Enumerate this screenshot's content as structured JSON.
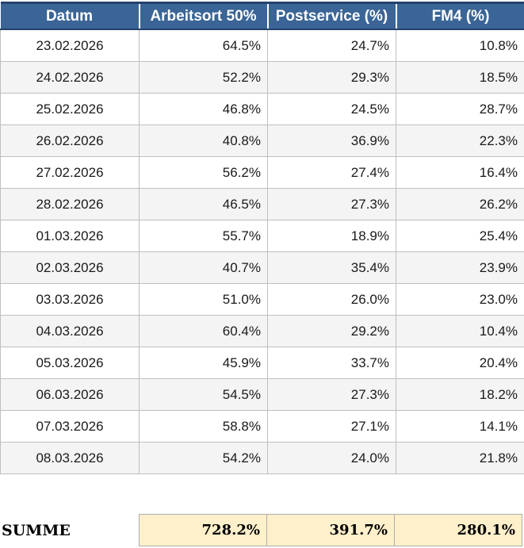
{
  "colors": {
    "header_bg": "#3A6596",
    "header_border": "#24426C",
    "row_alt": "#F4F4F4",
    "grid": "#BFBFBF",
    "summary_bg": "#FEF0CB",
    "summary_border": "#ADADAD"
  },
  "chart_data": {
    "type": "table",
    "title": "",
    "columns": [
      "Datum",
      "Arbeitsort 50%",
      "Postservice (%)",
      "FM4 (%)"
    ],
    "rows": [
      {
        "date": "23.02.2026",
        "arbeitsort": "64.5%",
        "postservice": "24.7%",
        "fm4": "10.8%"
      },
      {
        "date": "24.02.2026",
        "arbeitsort": "52.2%",
        "postservice": "29.3%",
        "fm4": "18.5%"
      },
      {
        "date": "25.02.2026",
        "arbeitsort": "46.8%",
        "postservice": "24.5%",
        "fm4": "28.7%"
      },
      {
        "date": "26.02.2026",
        "arbeitsort": "40.8%",
        "postservice": "36.9%",
        "fm4": "22.3%"
      },
      {
        "date": "27.02.2026",
        "arbeitsort": "56.2%",
        "postservice": "27.4%",
        "fm4": "16.4%"
      },
      {
        "date": "28.02.2026",
        "arbeitsort": "46.5%",
        "postservice": "27.3%",
        "fm4": "26.2%"
      },
      {
        "date": "01.03.2026",
        "arbeitsort": "55.7%",
        "postservice": "18.9%",
        "fm4": "25.4%"
      },
      {
        "date": "02.03.2026",
        "arbeitsort": "40.7%",
        "postservice": "35.4%",
        "fm4": "23.9%"
      },
      {
        "date": "03.03.2026",
        "arbeitsort": "51.0%",
        "postservice": "26.0%",
        "fm4": "23.0%"
      },
      {
        "date": "04.03.2026",
        "arbeitsort": "60.4%",
        "postservice": "29.2%",
        "fm4": "10.4%"
      },
      {
        "date": "05.03.2026",
        "arbeitsort": "45.9%",
        "postservice": "33.7%",
        "fm4": "20.4%"
      },
      {
        "date": "06.03.2026",
        "arbeitsort": "54.5%",
        "postservice": "27.3%",
        "fm4": "18.2%"
      },
      {
        "date": "07.03.2026",
        "arbeitsort": "58.8%",
        "postservice": "27.1%",
        "fm4": "14.1%"
      },
      {
        "date": "08.03.2026",
        "arbeitsort": "54.2%",
        "postservice": "24.0%",
        "fm4": "21.8%"
      }
    ],
    "summary": {
      "label": "SUMME",
      "cells": [
        "728.2%",
        "391.7%",
        "280.1%"
      ]
    }
  },
  "table": {
    "columns": [
      "Datum",
      "Arbeitsort 50%",
      "Postservice (%)",
      "FM4 (%)"
    ],
    "rows": [
      {
        "date": "23.02.2026",
        "arbeitsort": "64.5%",
        "postservice": "24.7%",
        "fm4": "10.8%"
      },
      {
        "date": "24.02.2026",
        "arbeitsort": "52.2%",
        "postservice": "29.3%",
        "fm4": "18.5%"
      },
      {
        "date": "25.02.2026",
        "arbeitsort": "46.8%",
        "postservice": "24.5%",
        "fm4": "28.7%"
      },
      {
        "date": "26.02.2026",
        "arbeitsort": "40.8%",
        "postservice": "36.9%",
        "fm4": "22.3%"
      },
      {
        "date": "27.02.2026",
        "arbeitsort": "56.2%",
        "postservice": "27.4%",
        "fm4": "16.4%"
      },
      {
        "date": "28.02.2026",
        "arbeitsort": "46.5%",
        "postservice": "27.3%",
        "fm4": "26.2%"
      },
      {
        "date": "01.03.2026",
        "arbeitsort": "55.7%",
        "postservice": "18.9%",
        "fm4": "25.4%"
      },
      {
        "date": "02.03.2026",
        "arbeitsort": "40.7%",
        "postservice": "35.4%",
        "fm4": "23.9%"
      },
      {
        "date": "03.03.2026",
        "arbeitsort": "51.0%",
        "postservice": "26.0%",
        "fm4": "23.0%"
      },
      {
        "date": "04.03.2026",
        "arbeitsort": "60.4%",
        "postservice": "29.2%",
        "fm4": "10.4%"
      },
      {
        "date": "05.03.2026",
        "arbeitsort": "45.9%",
        "postservice": "33.7%",
        "fm4": "20.4%"
      },
      {
        "date": "06.03.2026",
        "arbeitsort": "54.5%",
        "postservice": "27.3%",
        "fm4": "18.2%"
      },
      {
        "date": "07.03.2026",
        "arbeitsort": "58.8%",
        "postservice": "27.1%",
        "fm4": "14.1%"
      },
      {
        "date": "08.03.2026",
        "arbeitsort": "54.2%",
        "postservice": "24.0%",
        "fm4": "21.8%"
      }
    ]
  },
  "summary": {
    "label": "SUMME",
    "cells": [
      "728.2%",
      "391.7%",
      "280.1%"
    ]
  }
}
